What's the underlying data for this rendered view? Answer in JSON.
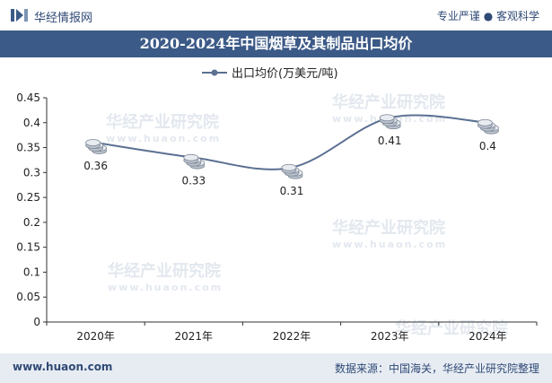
{
  "header": {
    "brand": "华经情报网",
    "tagline": "专业严谨 ● 客观科学"
  },
  "title": "2020-2024年中国烟草及其制品出口均价",
  "watermark": {
    "cn": "华经产业研究院",
    "en": "www.huaon.com"
  },
  "footer": {
    "website": "www.huaon.com",
    "source": "数据来源：中国海关，华经产业研究院整理"
  },
  "colors": {
    "line": "#5b7092",
    "title_bg": "#3c5a87",
    "accent": "#2f4a75"
  },
  "chart_data": {
    "type": "line",
    "categories": [
      "2020年",
      "2021年",
      "2022年",
      "2023年",
      "2024年"
    ],
    "series": [
      {
        "name": "出口均价(万美元/吨)",
        "values": [
          0.36,
          0.33,
          0.31,
          0.41,
          0.4
        ]
      }
    ],
    "data_labels": [
      "0.36",
      "0.33",
      "0.31",
      "0.41",
      "0.4"
    ],
    "ylim": [
      0,
      0.45
    ],
    "yticks": [
      0,
      0.05,
      0.1,
      0.15,
      0.2,
      0.25,
      0.3,
      0.35,
      0.4,
      0.45
    ],
    "ytick_labels": [
      "0",
      "0.05",
      "0.1",
      "0.15",
      "0.2",
      "0.25",
      "0.3",
      "0.35",
      "0.4",
      "0.45"
    ],
    "legend": "top-center",
    "grid": false,
    "smooth": true
  }
}
